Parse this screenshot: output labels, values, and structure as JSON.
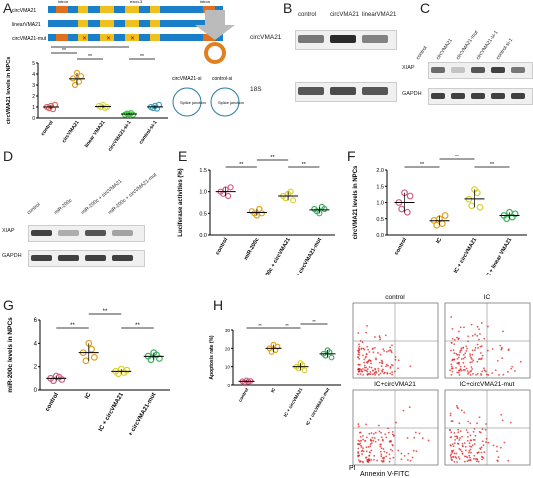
{
  "panels": {
    "A": {
      "label": "A",
      "constructs": [
        "circVMA21",
        "linearVMA21",
        "circVMA21-mut"
      ],
      "intron": "intron",
      "exon": "exon-3",
      "si_labels": [
        "circVMA21-si",
        "control-si"
      ],
      "splice": "Splice junction",
      "chart_data": {
        "type": "scatter",
        "ylabel": "circVMA21 levels in NPCs",
        "categories": [
          "control",
          "circVMA21",
          "linear VMA21",
          "circVMA21-si-1",
          "control-si-1"
        ],
        "values": [
          [
            1.0,
            0.9,
            1.1,
            0.8,
            1.2
          ],
          [
            3.6,
            3.0,
            4.1,
            3.3,
            3.8
          ],
          [
            1.1,
            1.0,
            1.2,
            0.9,
            1.0
          ],
          [
            0.3,
            0.4,
            0.35,
            0.45,
            0.3
          ],
          [
            1.0,
            0.9,
            1.1,
            0.85,
            1.2
          ]
        ],
        "ylim": [
          0,
          5
        ],
        "yticks": [
          "0",
          "1",
          "2",
          "3",
          "4",
          "5"
        ],
        "sig": "**"
      }
    },
    "B": {
      "label": "B",
      "lanes": [
        "control",
        "circVMA21",
        "linearVMA21"
      ],
      "rows": [
        "circVMA21",
        "18S"
      ]
    },
    "C": {
      "label": "C",
      "lanes": [
        "control",
        "circVMA21",
        "circVMA21-mut",
        "circVMA21-si-1",
        "control-si-1"
      ],
      "rows": [
        "XIAP",
        "GAPDH"
      ]
    },
    "D": {
      "label": "D",
      "lanes": [
        "control",
        "miR-200c",
        "miR-200c + circVMA21",
        "miR-200c + circVMA21-mut"
      ],
      "rows": [
        "XIAP",
        "GAPDH"
      ]
    },
    "E": {
      "label": "E",
      "chart_data": {
        "type": "scatter",
        "ylabel": "Luciferase activities (%)",
        "categories": [
          "control",
          "miR-200c",
          "miR-200c + circVMA21",
          "miR-200c + circVMA21-mut"
        ],
        "values": [
          [
            1.0,
            0.95,
            1.05,
            0.9,
            1.1
          ],
          [
            0.55,
            0.5,
            0.45,
            0.6,
            0.5
          ],
          [
            0.9,
            0.85,
            0.95,
            1.0,
            0.8
          ],
          [
            0.6,
            0.55,
            0.5,
            0.65,
            0.6
          ]
        ],
        "ylim": [
          0,
          1.5
        ],
        "yticks": [
          "0.0",
          "0.5",
          "1.0",
          "1.5"
        ],
        "sig": "**"
      }
    },
    "F": {
      "label": "F",
      "chart_data": {
        "type": "scatter",
        "ylabel": "circVMA21 levels in NPCs",
        "categories": [
          "control",
          "IC",
          "IC + circVMA21",
          "IC + linear VMA21"
        ],
        "values": [
          [
            1.0,
            0.8,
            1.3,
            0.7,
            1.2
          ],
          [
            0.45,
            0.3,
            0.5,
            0.35,
            0.6
          ],
          [
            1.1,
            0.9,
            1.4,
            1.3,
            0.85
          ],
          [
            0.6,
            0.5,
            0.7,
            0.55,
            0.65
          ]
        ],
        "ylim": [
          0,
          2.0
        ],
        "yticks": [
          "0.0",
          "0.5",
          "1.0",
          "1.5",
          "2.0"
        ],
        "sig": "**"
      }
    },
    "G": {
      "label": "G",
      "chart_data": {
        "type": "scatter",
        "ylabel": "miR-200c levels in NPCs",
        "categories": [
          "control",
          "IC",
          "IC + circVMA21",
          "IC + circVMA21-mut"
        ],
        "values": [
          [
            1.0,
            0.8,
            1.2,
            1.1,
            0.9
          ],
          [
            3.2,
            2.5,
            4.0,
            3.5,
            2.8
          ],
          [
            1.6,
            1.4,
            1.8,
            1.5,
            1.7
          ],
          [
            2.9,
            2.6,
            3.2,
            3.0,
            2.7
          ]
        ],
        "ylim": [
          0,
          6
        ],
        "yticks": [
          "0",
          "2",
          "4",
          "6"
        ],
        "sig": "**"
      }
    },
    "H": {
      "label": "H",
      "chart_data": {
        "type": "scatter",
        "ylabel": "Apoptosis rate (%)",
        "categories": [
          "control",
          "IC",
          "IC + circVMA21",
          "IC + circVMA21-mut"
        ],
        "values": [
          [
            2,
            1.5,
            2.5,
            1.8,
            2.2
          ],
          [
            20,
            18,
            22,
            19,
            21
          ],
          [
            10,
            9,
            12,
            11,
            8
          ],
          [
            17,
            16,
            19,
            18,
            15
          ]
        ],
        "ylim": [
          0,
          30
        ],
        "yticks": [
          "0",
          "10",
          "20",
          "30"
        ],
        "sig": "**"
      },
      "flow_titles": [
        "control",
        "IC",
        "IC+circVMA21",
        "IC+circVMA21-mut"
      ],
      "flow_y": "PI",
      "flow_x": "Annexin V-FITC"
    }
  },
  "colors": {
    "A": [
      "#e06060",
      "#e0a020",
      "#d8d840",
      "#40c040",
      "#40a0c0"
    ],
    "EFGH": [
      "#d06080",
      "#e0a020",
      "#d8d030",
      "#40b060",
      "#4060c0"
    ]
  }
}
